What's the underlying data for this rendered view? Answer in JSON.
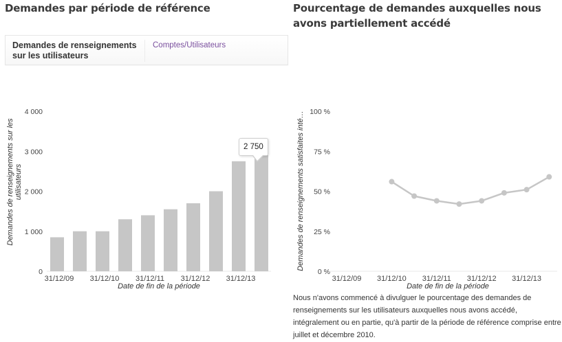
{
  "left_panel": {
    "title": "Demandes par période de référence",
    "card": {
      "label": "Demandes de renseignements sur les utilisateurs",
      "link": "Comptes/Utilisateurs"
    },
    "tooltip": "2 750"
  },
  "right_panel": {
    "title": "Pourcentage de demandes auxquelles nous avons partiellement accédé",
    "note": "Nous n'avons commencé à divulguer le pourcentage des demandes de renseignements sur les utilisateurs auxquelles nous avons accédé, intégralement ou en partie, qu'à partir de la période de référence comprise entre juillet et décembre 2010."
  },
  "chart_data": [
    {
      "type": "bar",
      "title": "Demandes par période de référence",
      "xlabel": "Date de fin de la période",
      "ylabel_lines": [
        "Demandes de renseignements sur les",
        "utilisateurs"
      ],
      "ylim": [
        0,
        4000
      ],
      "yticks": [
        0,
        1000,
        2000,
        3000,
        4000
      ],
      "ytick_labels": [
        "0",
        "1 000",
        "2 000",
        "3 000",
        "4 000"
      ],
      "xtick_labels": [
        "31/12/09",
        "",
        "31/12/10",
        "",
        "31/12/11",
        "",
        "31/12/12",
        "",
        "31/12/13",
        ""
      ],
      "values": [
        850,
        1000,
        1000,
        1300,
        1400,
        1550,
        1700,
        2000,
        2750,
        2900
      ],
      "highlighted_label": "2 750",
      "color": "#c6c6c6",
      "grid": false
    },
    {
      "type": "line",
      "title": "Pourcentage de demandes auxquelles nous avons partiellement accédé",
      "xlabel": "Date de fin de la période",
      "ylabel": "Demandes de renseignements satisfaites inté…",
      "ylim": [
        0,
        100
      ],
      "yticks": [
        0,
        25,
        50,
        75,
        100
      ],
      "ytick_labels": [
        "0 %",
        "25 %",
        "50 %",
        "75 %",
        "100 %"
      ],
      "xtick_labels": [
        "31/12/09",
        "",
        "31/12/10",
        "",
        "31/12/11",
        "",
        "31/12/12",
        "",
        "31/12/13",
        ""
      ],
      "values": [
        null,
        null,
        56,
        47,
        44,
        42,
        44,
        49,
        51,
        59
      ],
      "color": "#c6c6c6",
      "grid": false
    }
  ]
}
